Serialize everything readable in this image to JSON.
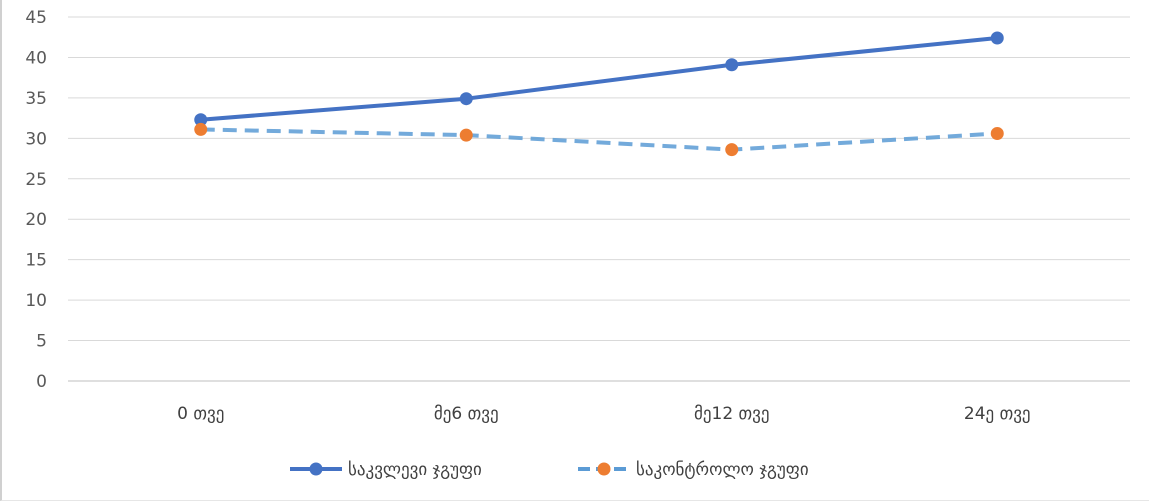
{
  "chart_data": {
    "type": "line",
    "title": "",
    "xlabel": "",
    "ylabel": "",
    "categories": [
      "0 თვე",
      "მე6 თვე",
      "მე12 თვე",
      "24ე თვე"
    ],
    "y_ticks": [
      0,
      5,
      10,
      15,
      20,
      25,
      30,
      35,
      40,
      45
    ],
    "ylim": [
      0,
      45
    ],
    "grid": true,
    "legend_position": "bottom",
    "series": [
      {
        "name": "საკვლევი ჯგუფი",
        "values": [
          32.3,
          34.9,
          39.1,
          42.4
        ],
        "line_color": "#4472c4",
        "marker_color": "#4472c4",
        "line_style": "solid"
      },
      {
        "name": "საკონტროლო ჯგუფი",
        "values": [
          31.1,
          30.4,
          28.6,
          30.6
        ],
        "line_color": "#5b9bd5",
        "marker_color": "#ed7d31",
        "line_style": "dashed"
      }
    ]
  }
}
